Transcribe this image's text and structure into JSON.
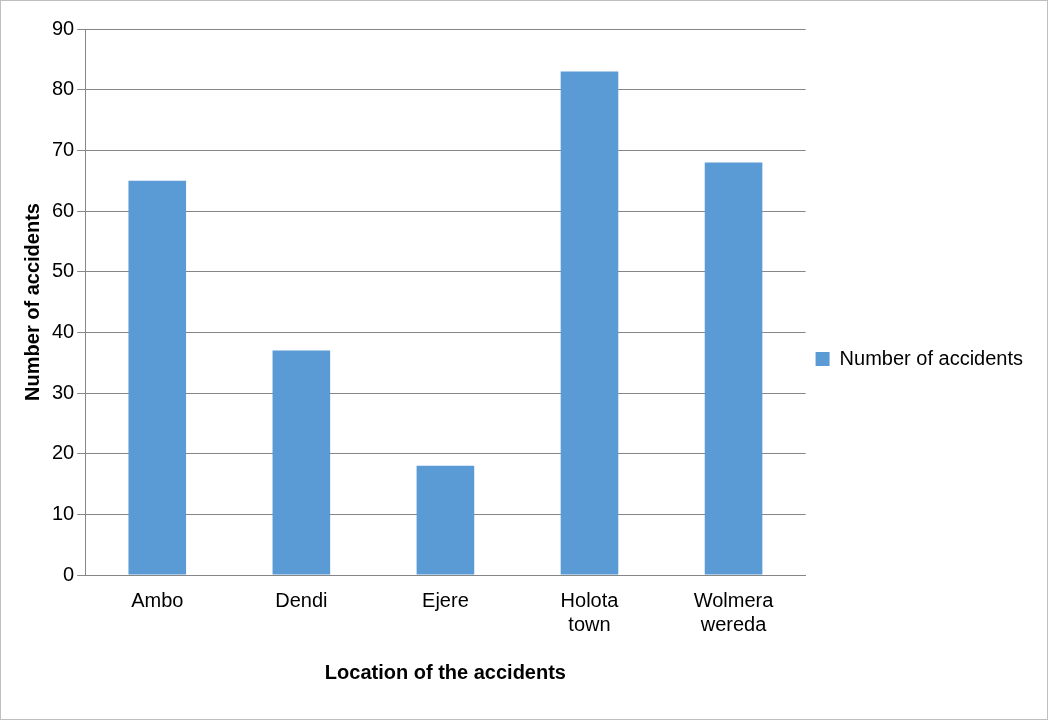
{
  "chart_data": {
    "type": "bar",
    "xlabel": "Location of the accidents",
    "ylabel": "Number of accidents",
    "categories": [
      "Ambo",
      "Dendi",
      "Ejere",
      "Holota town",
      "Wolmera wereda"
    ],
    "series": [
      {
        "name": "Number of accidents",
        "color": "#5b9bd5",
        "values": [
          65,
          37,
          18,
          83,
          68
        ]
      }
    ],
    "ylim": [
      0,
      90
    ],
    "yticks": [
      0,
      10,
      20,
      30,
      40,
      50,
      60,
      70,
      80,
      90
    ],
    "grid": "y",
    "legend": "right"
  }
}
